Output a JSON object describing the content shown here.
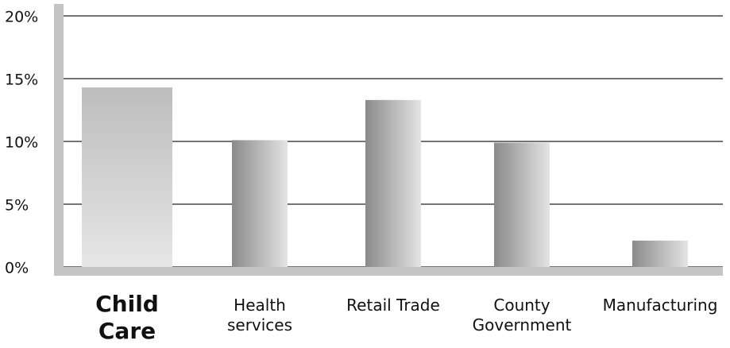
{
  "chart_data": {
    "type": "bar",
    "categories": [
      "Child Care",
      "Health services",
      "Retail Trade",
      "County Government",
      "Manufacturing"
    ],
    "values": [
      14.3,
      10.1,
      13.3,
      9.9,
      2.1
    ],
    "color": "#999999",
    "ylim": [
      0,
      20
    ],
    "yticks": [
      {
        "value": 0,
        "label": "0%"
      },
      {
        "value": 5,
        "label": "5%"
      },
      {
        "value": 10,
        "label": "10%"
      },
      {
        "value": 15,
        "label": "15%"
      },
      {
        "value": 20,
        "label": "20%"
      }
    ],
    "grid": true
  }
}
